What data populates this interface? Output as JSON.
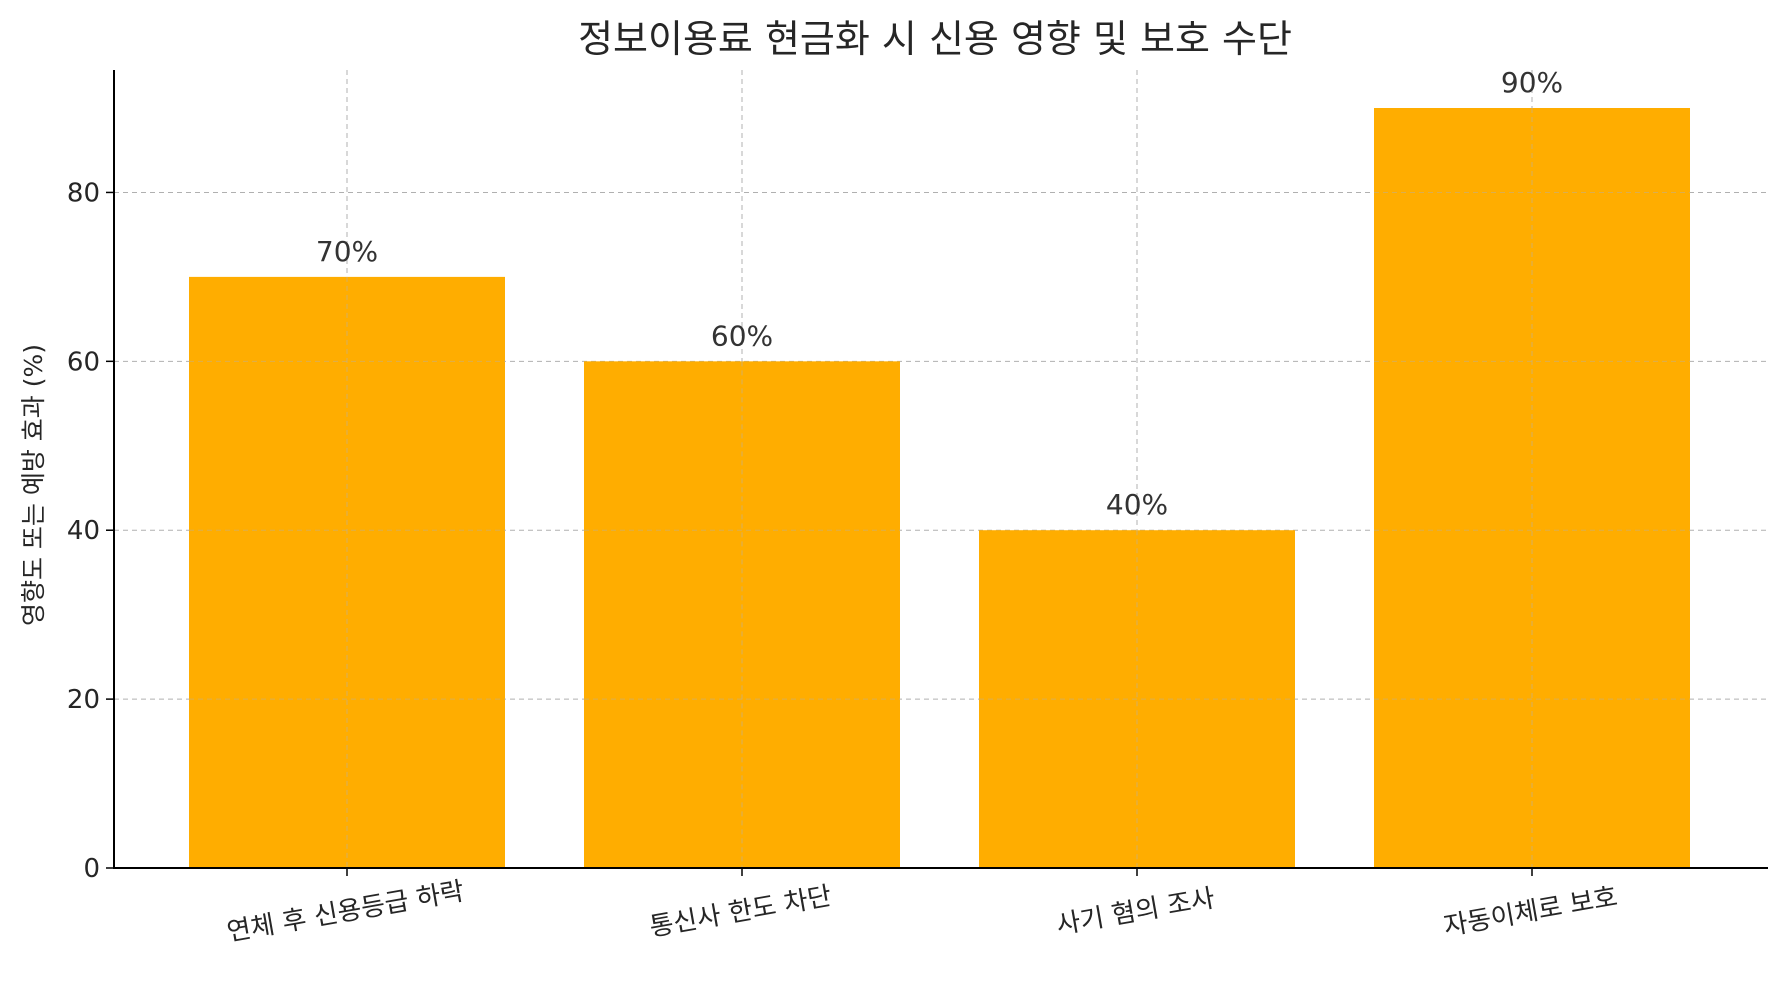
{
  "chart_data": {
    "type": "bar",
    "title": "정보이용료 현금화 시 신용 영향 및 보호 수단",
    "xlabel": "",
    "ylabel": "영향도 또는 예방 효과 (%)",
    "categories": [
      "연체 후 신용등급 하락",
      "통신사 한도 차단",
      "사기 혐의 조사",
      "자동이체로 보호"
    ],
    "values": [
      70,
      60,
      40,
      90
    ],
    "data_labels": [
      "70%",
      "60%",
      "40%",
      "90%"
    ],
    "yticks": [
      0,
      20,
      40,
      60,
      80
    ],
    "ylim": [
      0,
      94.5
    ],
    "grid": true,
    "bar_color": "#ffad00",
    "category_label_rotation_deg": -10
  }
}
